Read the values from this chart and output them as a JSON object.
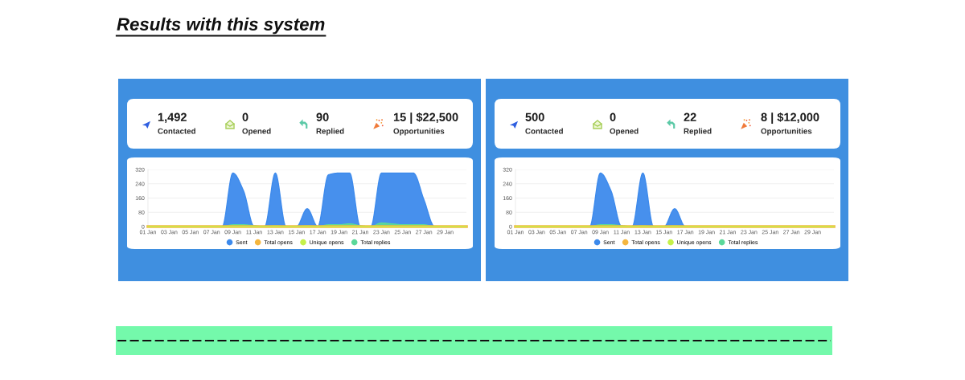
{
  "chart_data": [
    {
      "type": "other",
      "title": "Results with this system",
      "annotations": [
        "1,492",
        "Contacted",
        "0",
        "Opened",
        "90",
        "Replied",
        "15 | $22,500",
        "Opportunities"
      ]
    },
    {
      "type": "area",
      "categories": [
        "01 Jan",
        null,
        "03 Jan",
        null,
        "05 Jan",
        null,
        "07 Jan",
        null,
        "09 Jan",
        null,
        "11 Jan",
        null,
        "13 Jan",
        null,
        "15 Jan",
        null,
        "17 Jan",
        null,
        "19 Jan",
        null,
        "21 Jan",
        null,
        "23 Jan",
        null,
        "25 Jan",
        null,
        "27 Jan",
        null,
        "29 Jan",
        null,
        null
      ],
      "series": [
        {
          "name": "Sent",
          "color": "#3d8aec",
          "values": [
            0,
            0,
            0,
            0,
            0,
            0,
            0,
            0,
            300,
            200,
            0,
            0,
            300,
            0,
            0,
            100,
            0,
            290,
            300,
            300,
            0,
            0,
            300,
            300,
            300,
            300,
            150,
            0,
            0,
            0,
            0
          ]
        },
        {
          "name": "Total opens",
          "type": "line",
          "color": "#f4b63f",
          "values": [
            0,
            0,
            0,
            0,
            0,
            0,
            0,
            0,
            0,
            0,
            0,
            0,
            0,
            0,
            0,
            0,
            0,
            0,
            0,
            0,
            0,
            0,
            0,
            0,
            0,
            0,
            0,
            0,
            0,
            0,
            0
          ]
        },
        {
          "name": "Unique opens",
          "type": "line",
          "color": "#c5f14a",
          "values": [
            0,
            0,
            0,
            0,
            0,
            0,
            0,
            0,
            0,
            0,
            0,
            0,
            0,
            0,
            0,
            0,
            0,
            0,
            0,
            0,
            0,
            0,
            0,
            0,
            0,
            0,
            0,
            0,
            0,
            0,
            0
          ]
        },
        {
          "name": "Total replies",
          "color": "#5bd89a",
          "values": [
            0,
            0,
            0,
            0,
            0,
            0,
            0,
            0,
            10,
            10,
            5,
            0,
            5,
            0,
            0,
            5,
            0,
            10,
            10,
            15,
            5,
            0,
            20,
            15,
            10,
            10,
            10,
            0,
            0,
            0,
            0
          ]
        }
      ],
      "ylim": [
        0,
        320
      ],
      "yticks": [
        0,
        80,
        160,
        240,
        320
      ],
      "grid": "y",
      "legend": "bottom"
    },
    {
      "type": "other",
      "annotations": [
        "500",
        "Contacted",
        "0",
        "Opened",
        "22",
        "Replied",
        "8 | $12,000",
        "Opportunities"
      ]
    },
    {
      "type": "area",
      "categories": [
        "01 Jan",
        null,
        "03 Jan",
        null,
        "05 Jan",
        null,
        "07 Jan",
        null,
        "09 Jan",
        null,
        "11 Jan",
        null,
        "13 Jan",
        null,
        "15 Jan",
        null,
        "17 Jan",
        null,
        "19 Jan",
        null,
        "21 Jan",
        null,
        "23 Jan",
        null,
        "25 Jan",
        null,
        "27 Jan",
        null,
        "29 Jan",
        null,
        null
      ],
      "series": [
        {
          "name": "Sent",
          "color": "#3d8aec",
          "values": [
            0,
            0,
            0,
            0,
            0,
            0,
            0,
            0,
            300,
            200,
            0,
            0,
            300,
            0,
            0,
            100,
            0,
            0,
            0,
            0,
            0,
            0,
            0,
            0,
            0,
            0,
            0,
            0,
            0,
            0,
            0
          ]
        },
        {
          "name": "Total opens",
          "type": "line",
          "color": "#f4b63f",
          "values": [
            0,
            0,
            0,
            0,
            0,
            0,
            0,
            0,
            0,
            0,
            0,
            0,
            0,
            0,
            0,
            0,
            0,
            0,
            0,
            0,
            0,
            0,
            0,
            0,
            0,
            0,
            0,
            0,
            0,
            0,
            0
          ]
        },
        {
          "name": "Unique opens",
          "type": "line",
          "color": "#c5f14a",
          "values": [
            0,
            0,
            0,
            0,
            0,
            0,
            0,
            0,
            0,
            0,
            0,
            0,
            0,
            0,
            0,
            0,
            0,
            0,
            0,
            0,
            0,
            0,
            0,
            0,
            0,
            0,
            0,
            0,
            0,
            0,
            0
          ]
        },
        {
          "name": "Total replies",
          "color": "#5bd89a",
          "values": [
            0,
            0,
            0,
            0,
            0,
            0,
            0,
            0,
            10,
            10,
            5,
            0,
            5,
            0,
            0,
            5,
            0,
            0,
            0,
            0,
            0,
            0,
            0,
            0,
            0,
            0,
            0,
            0,
            0,
            0,
            0
          ]
        }
      ],
      "ylim": [
        0,
        320
      ],
      "yticks": [
        0,
        80,
        160,
        240,
        320
      ],
      "grid": "y",
      "legend": "bottom"
    }
  ]
}
